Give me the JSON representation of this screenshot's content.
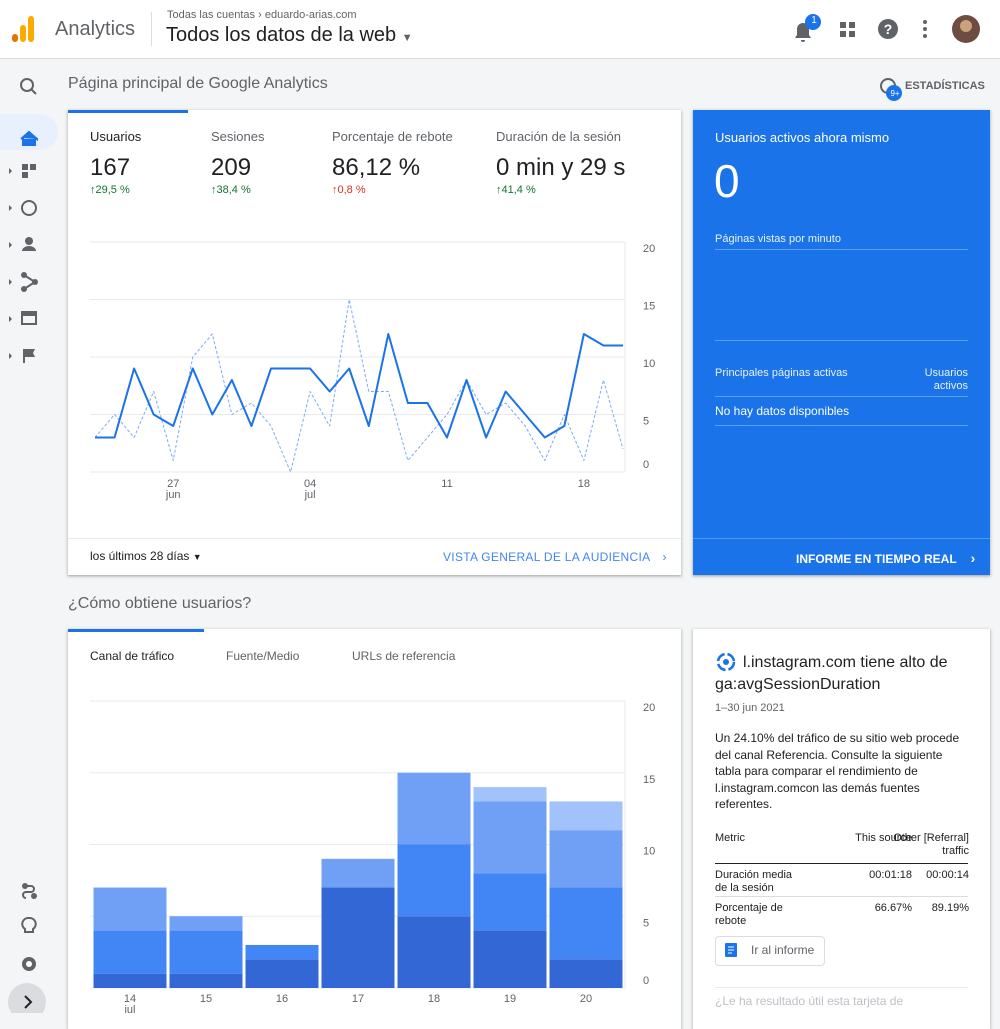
{
  "header": {
    "product": "Analytics",
    "breadcrumb_root": "Todas las cuentas",
    "breadcrumb_account": "eduardo-arias.com",
    "view": "Todos los datos de la web",
    "notifications": "1"
  },
  "home": {
    "title": "Página principal de Google Analytics",
    "insights": "ESTADÍSTICAS",
    "insights_badge": "9+",
    "metrics": [
      {
        "label": "Usuarios",
        "value": "167",
        "change": "29,5 %"
      },
      {
        "label": "Sesiones",
        "value": "209",
        "change": "38,4 %"
      },
      {
        "label": "Porcentaje de rebote",
        "value": "86,12 %",
        "change": "0,8 %"
      },
      {
        "label": "Duración de la sesión",
        "value": "0 min y 29 s",
        "change": "41,4 %"
      }
    ],
    "range": "los últimos 28 días",
    "audience_link": "VISTA GENERAL DE LA AUDIENCIA"
  },
  "realtime": {
    "title": "Usuarios activos ahora mismo",
    "value": "0",
    "pageviews": "Páginas vistas por minuto",
    "top_pages": "Principales páginas activas",
    "active_users": "Usuarios activos",
    "no_data": "No hay datos disponibles",
    "link": "INFORME EN TIEMPO REAL"
  },
  "acquisition": {
    "title": "¿Cómo obtiene usuarios?",
    "tabs": [
      "Canal de tráfico",
      "Fuente/Medio",
      "URLs de referencia"
    ]
  },
  "insight_card": {
    "title": "l.instagram.com tiene alto de ga:avgSessionDuration",
    "date": "1–30 jun 2021",
    "body": "Un 24.10% del tráfico de su sitio web procede del canal Referencia. Consulte la siguiente tabla para comparar el rendimiento de l.instagram.comcon las demás fuentes referentes.",
    "table": {
      "header": [
        "Metric",
        "This source",
        "Other [Referral] traffic"
      ],
      "rows": [
        [
          "Duración media de la sesión",
          "00:01:18",
          "00:00:14"
        ],
        [
          "Porcentaje de rebote",
          "66.67%",
          "89.19%"
        ]
      ]
    },
    "button": "Ir al informe",
    "feedback": "¿Le ha resultado útil esta tarjeta de"
  },
  "chart_data": [
    {
      "type": "line",
      "categories": [
        null,
        null,
        null,
        null,
        "27 jun",
        null,
        null,
        null,
        null,
        null,
        null,
        "04 jul",
        null,
        null,
        null,
        null,
        null,
        null,
        "11",
        null,
        null,
        null,
        null,
        null,
        null,
        "18",
        null,
        null
      ],
      "series": [
        {
          "color": "#1a73e8",
          "style": "solid",
          "values": [
            3,
            3,
            9,
            5,
            4,
            9,
            5,
            8,
            4,
            9,
            9,
            9,
            7,
            9,
            4,
            12,
            6,
            6,
            3,
            8,
            3,
            7,
            5,
            3,
            4,
            12,
            11,
            11
          ]
        },
        {
          "color": "#7baaf7",
          "style": "dashed",
          "values": [
            3,
            5,
            3,
            7,
            1,
            10,
            12,
            5,
            6,
            4,
            0,
            7,
            4,
            15,
            7,
            7,
            1,
            3,
            5,
            8,
            5,
            6,
            4,
            1,
            5,
            1,
            8,
            2
          ]
        }
      ],
      "ylim": [
        0,
        20
      ],
      "yticks": [
        0,
        5,
        10,
        15,
        20
      ],
      "grid": true
    },
    {
      "type": "stacked_bar",
      "categories": [
        "14 jul",
        "15",
        "16",
        "17",
        "18",
        "19",
        "20"
      ],
      "series": [
        {
          "color": "#3367d6",
          "values": [
            1,
            1,
            2,
            7,
            5,
            4,
            2
          ]
        },
        {
          "color": "#4285f4",
          "values": [
            3,
            3,
            1,
            0,
            5,
            4,
            5
          ]
        },
        {
          "color": "#6fa0f6",
          "values": [
            3,
            1,
            0,
            2,
            5,
            5,
            4
          ]
        },
        {
          "color": "#a1c2fa",
          "values": [
            0,
            0,
            0,
            0,
            0,
            1,
            2
          ]
        }
      ],
      "ylim": [
        0,
        20
      ],
      "yticks": [
        0,
        5,
        10,
        15,
        20
      ],
      "grid": true
    }
  ]
}
